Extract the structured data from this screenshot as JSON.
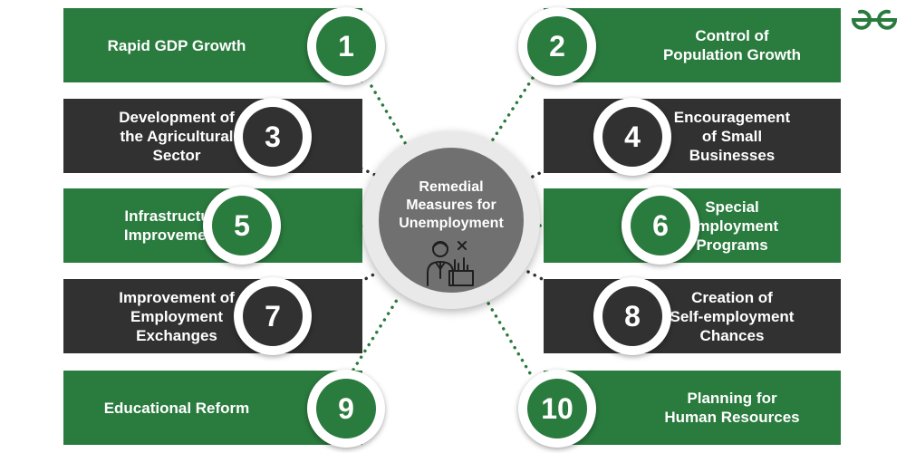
{
  "hub": {
    "title": "Remedial\nMeasures for\nUnemployment",
    "icon": "unemployed-person-icon"
  },
  "logo": {
    "icon": "geeksforgeeks-logo"
  },
  "colors": {
    "green": "#2a7b3e",
    "dark": "#313131",
    "hub": "#707070"
  },
  "measures": [
    {
      "number": "1",
      "label": "Rapid GDP Growth",
      "theme": "green"
    },
    {
      "number": "2",
      "label": "Control of\nPopulation Growth",
      "theme": "green"
    },
    {
      "number": "3",
      "label": "Development of\nthe  Agricultural\nSector",
      "theme": "dark"
    },
    {
      "number": "4",
      "label": "Encouragement\nof Small\nBusinesses",
      "theme": "dark"
    },
    {
      "number": "5",
      "label": "Infrastructural\nImprovements",
      "theme": "green"
    },
    {
      "number": "6",
      "label": "Special\nEmployment\nPrograms",
      "theme": "green"
    },
    {
      "number": "7",
      "label": "Improvement of\nEmployment\nExchanges",
      "theme": "dark"
    },
    {
      "number": "8",
      "label": "Creation of\nSelf-employment\nChances",
      "theme": "dark"
    },
    {
      "number": "9",
      "label": "Educational Reform",
      "theme": "green"
    },
    {
      "number": "10",
      "label": "Planning for\nHuman Resources",
      "theme": "green"
    }
  ]
}
